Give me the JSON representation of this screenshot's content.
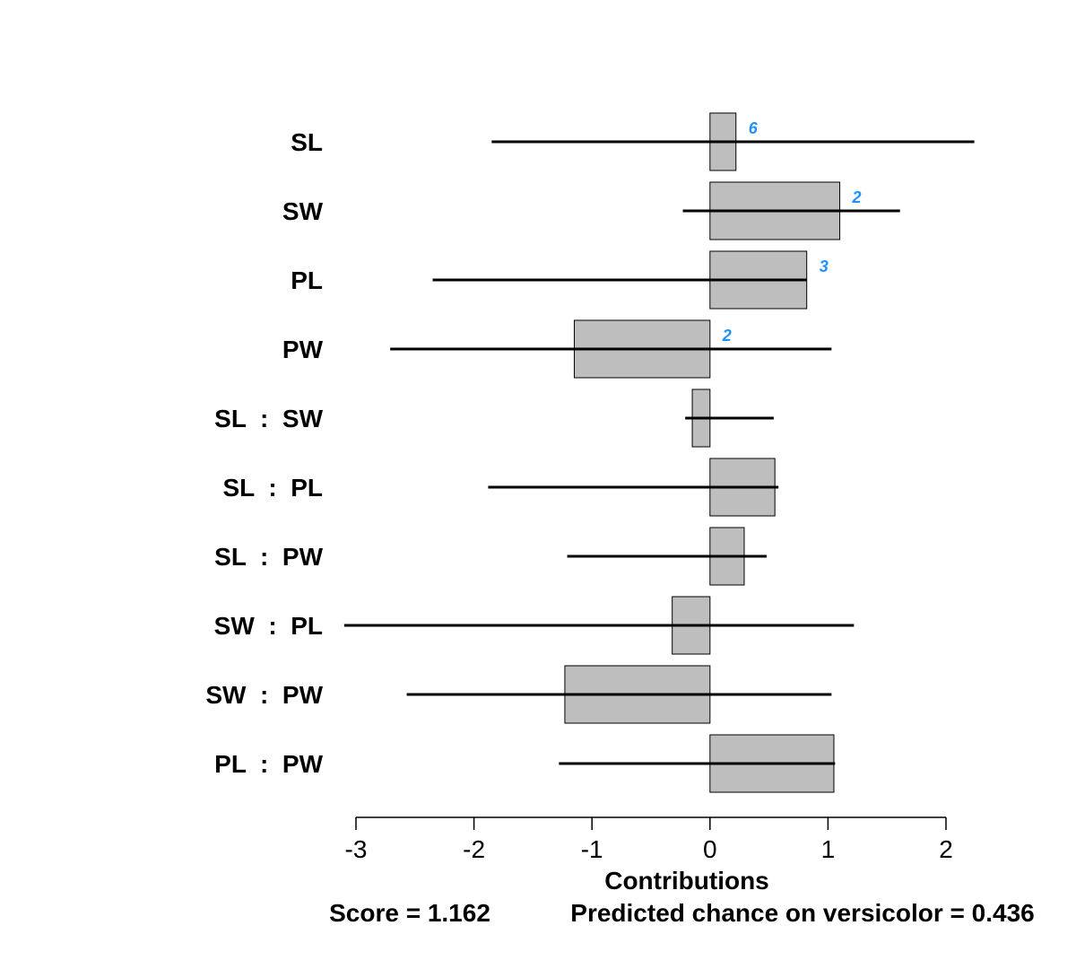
{
  "chart_data": {
    "type": "bar",
    "orientation": "horizontal",
    "categories": [
      "SL",
      "SW",
      "PL",
      "PW",
      "SL  :  SW",
      "SL  :  PL",
      "SL  :  PW",
      "SW  :  PL",
      "SW  :  PW",
      "PL  :  PW"
    ],
    "values": [
      0.22,
      1.1,
      0.82,
      -1.15,
      -0.15,
      0.55,
      0.29,
      -0.32,
      -1.23,
      1.05
    ],
    "ranges": [
      [
        -1.85,
        2.24
      ],
      [
        -0.23,
        1.61
      ],
      [
        -2.35,
        0.82
      ],
      [
        -2.71,
        1.03
      ],
      [
        -0.21,
        0.54
      ],
      [
        -1.88,
        0.58
      ],
      [
        -1.21,
        0.48
      ],
      [
        -3.1,
        1.22
      ],
      [
        -2.57,
        1.03
      ],
      [
        -1.28,
        1.06
      ]
    ],
    "annotations": [
      "6",
      "2",
      "3",
      "2",
      "",
      "",
      "",
      "",
      "",
      ""
    ],
    "xlabel": "Contributions",
    "xlim": [
      -3,
      2
    ],
    "xticks": [
      -3,
      -2,
      -1,
      0,
      1,
      2
    ],
    "xtick_labels": [
      "-3",
      "-2",
      "-1",
      "0",
      "1",
      "2"
    ],
    "score_text": "Score = 1.162",
    "predicted_text": "Predicted chance on versicolor = 0.436",
    "colors": {
      "bar_fill": "#bebebe",
      "bar_stroke": "#000000",
      "range_line": "#000000",
      "annotation": "#1e90ff"
    }
  }
}
